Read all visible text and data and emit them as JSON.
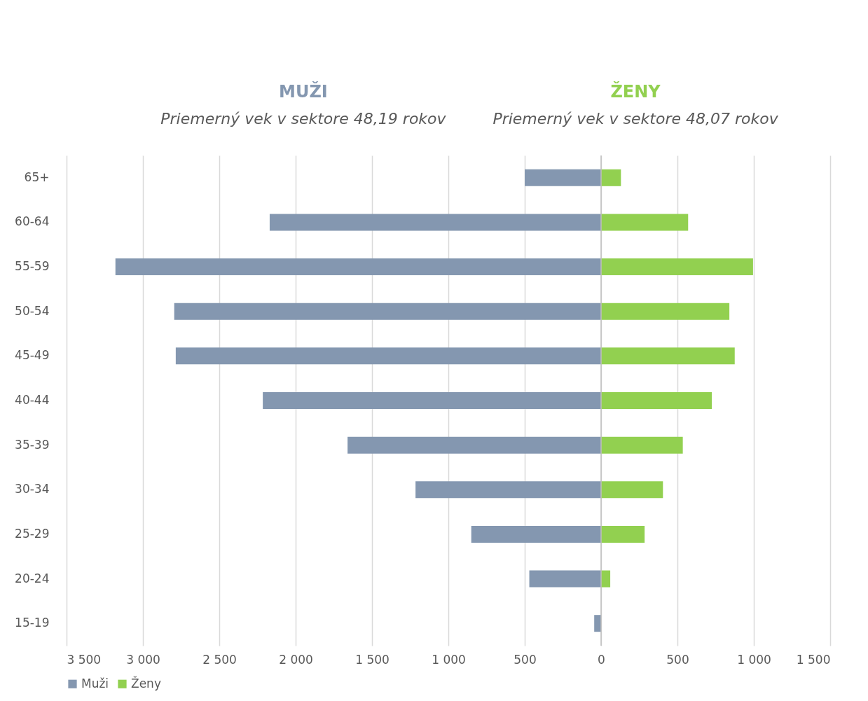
{
  "chart_data": {
    "type": "bar",
    "orientation": "horizontal",
    "annotations": [
      "MUŽI",
      "Priemerný vek v sektore 48,19 rokov",
      "ŽENY",
      "Priemerný vek v sektore 48,07 rokov"
    ],
    "categories": [
      "65+",
      "60-64",
      "55-59",
      "50-54",
      "45-49",
      "40-44",
      "35-39",
      "30-34",
      "25-29",
      "20-24",
      "15-19"
    ],
    "series": [
      {
        "name": "Muži",
        "color": "#8497b0",
        "values": [
          -500,
          -2170,
          -3180,
          -2795,
          -2785,
          -2215,
          -1660,
          -1215,
          -850,
          -470,
          -45
        ]
      },
      {
        "name": "Ženy",
        "color": "#92d050",
        "values": [
          130,
          570,
          995,
          840,
          875,
          725,
          535,
          405,
          285,
          60,
          null
        ]
      }
    ],
    "xlim": [
      -3500,
      1500
    ],
    "xticks": [
      {
        "value": -3500,
        "label": "3 500"
      },
      {
        "value": -3000,
        "label": "3 000"
      },
      {
        "value": -2500,
        "label": "2 500"
      },
      {
        "value": -2000,
        "label": "2 000"
      },
      {
        "value": -1500,
        "label": "1 500"
      },
      {
        "value": -1000,
        "label": "1 000"
      },
      {
        "value": -500,
        "label": "500"
      },
      0,
      500,
      {
        "value": 1000,
        "label": "1 000"
      },
      {
        "value": 1500,
        "label": "1 500"
      }
    ],
    "grid": "x",
    "legend": "bottom",
    "stacked": true
  }
}
